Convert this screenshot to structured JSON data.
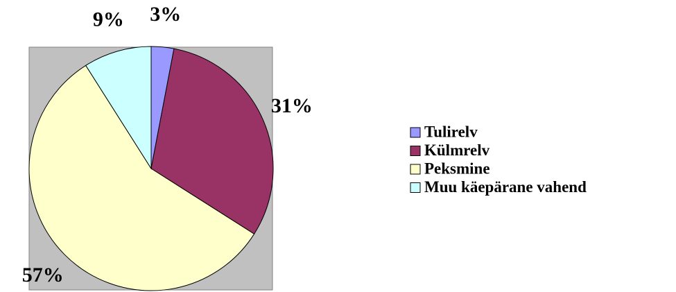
{
  "chart_data": {
    "type": "pie",
    "categories": [
      "Tulirelv",
      "Külmrelv",
      "Peksmine",
      "Muu käepärane vahend"
    ],
    "values": [
      3,
      31,
      57,
      9
    ],
    "value_labels": [
      "3%",
      "31%",
      "57%",
      "9%"
    ],
    "colors": [
      "#9999ff",
      "#993366",
      "#ffffcc",
      "#ccffff"
    ],
    "legend": "right"
  }
}
